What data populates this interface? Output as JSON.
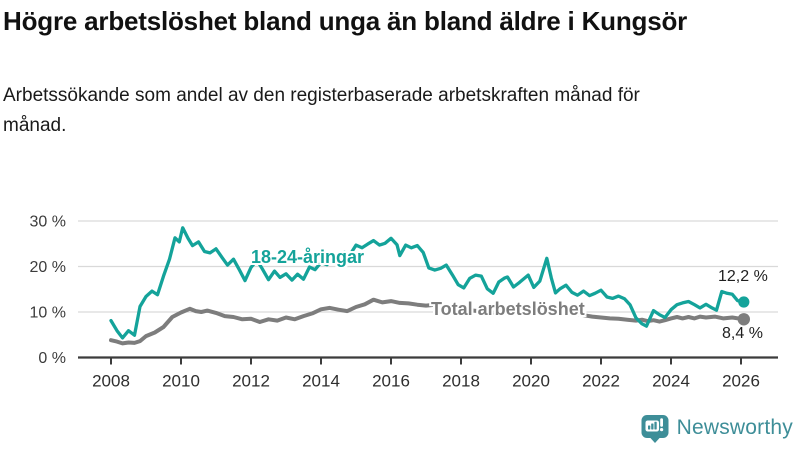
{
  "header": {
    "title": "Högre arbetslöshet bland unga än bland äldre i Kungsör",
    "subtitle": "Arbetssökande som andel av den registerbaserade arbetskraften månad för månad."
  },
  "chart_data": {
    "type": "line",
    "unit": "%",
    "grid": true,
    "ylim": [
      0,
      30
    ],
    "y_ticks": [
      0,
      10,
      20,
      30
    ],
    "y_tick_labels": [
      "0 %",
      "10 %",
      "20 %",
      "30 %"
    ],
    "x_ticks": [
      2008,
      2010,
      2012,
      2014,
      2016,
      2018,
      2020,
      2022,
      2024,
      2026
    ],
    "colors": {
      "young": "#14a39a",
      "total": "#7d7d7d",
      "grid": "#d9d9d9",
      "axis": "#3c3c3c"
    },
    "series": [
      {
        "name": "Total arbetslöshet",
        "color": "#7d7d7d",
        "end_label": "8,4 %",
        "end_value": 8.4,
        "points": [
          [
            2008.0,
            3.8
          ],
          [
            2008.17,
            3.5
          ],
          [
            2008.33,
            3.1
          ],
          [
            2008.5,
            3.3
          ],
          [
            2008.67,
            3.2
          ],
          [
            2008.83,
            3.6
          ],
          [
            2009.0,
            4.7
          ],
          [
            2009.25,
            5.5
          ],
          [
            2009.5,
            6.7
          ],
          [
            2009.75,
            8.9
          ],
          [
            2010.0,
            9.9
          ],
          [
            2010.25,
            10.7
          ],
          [
            2010.42,
            10.2
          ],
          [
            2010.58,
            10.0
          ],
          [
            2010.75,
            10.3
          ],
          [
            2011.0,
            9.8
          ],
          [
            2011.25,
            9.1
          ],
          [
            2011.5,
            8.9
          ],
          [
            2011.75,
            8.4
          ],
          [
            2012.0,
            8.5
          ],
          [
            2012.25,
            7.8
          ],
          [
            2012.5,
            8.4
          ],
          [
            2012.75,
            8.1
          ],
          [
            2013.0,
            8.8
          ],
          [
            2013.25,
            8.4
          ],
          [
            2013.5,
            9.1
          ],
          [
            2013.75,
            9.7
          ],
          [
            2014.0,
            10.6
          ],
          [
            2014.25,
            10.9
          ],
          [
            2014.5,
            10.5
          ],
          [
            2014.75,
            10.2
          ],
          [
            2015.0,
            11.1
          ],
          [
            2015.25,
            11.7
          ],
          [
            2015.5,
            12.7
          ],
          [
            2015.75,
            12.1
          ],
          [
            2016.0,
            12.4
          ],
          [
            2016.25,
            12.0
          ],
          [
            2016.5,
            11.9
          ],
          [
            2016.75,
            11.6
          ],
          [
            2017.0,
            11.4
          ],
          [
            2017.25,
            11.6
          ],
          [
            2017.5,
            11.3
          ],
          [
            2017.75,
            11.0
          ],
          [
            2018.0,
            10.7
          ],
          [
            2018.25,
            10.4
          ],
          [
            2018.5,
            10.2
          ],
          [
            2018.75,
            10.0
          ],
          [
            2019.0,
            9.8
          ],
          [
            2019.25,
            9.6
          ],
          [
            2019.5,
            9.7
          ],
          [
            2019.75,
            9.9
          ],
          [
            2020.0,
            10.0
          ],
          [
            2020.25,
            10.5
          ],
          [
            2020.5,
            10.7
          ],
          [
            2020.75,
            10.3
          ],
          [
            2021.0,
            10.0
          ],
          [
            2021.25,
            9.6
          ],
          [
            2021.5,
            9.3
          ],
          [
            2021.75,
            9.0
          ],
          [
            2022.0,
            8.8
          ],
          [
            2022.25,
            8.6
          ],
          [
            2022.5,
            8.5
          ],
          [
            2022.75,
            8.3
          ],
          [
            2023.0,
            8.1
          ],
          [
            2023.17,
            8.3
          ],
          [
            2023.33,
            8.0
          ],
          [
            2023.5,
            8.2
          ],
          [
            2023.67,
            7.9
          ],
          [
            2023.83,
            8.2
          ],
          [
            2024.0,
            8.6
          ],
          [
            2024.17,
            8.9
          ],
          [
            2024.33,
            8.6
          ],
          [
            2024.5,
            8.9
          ],
          [
            2024.67,
            8.6
          ],
          [
            2024.83,
            9.0
          ],
          [
            2025.0,
            8.8
          ],
          [
            2025.25,
            9.0
          ],
          [
            2025.5,
            8.6
          ],
          [
            2025.75,
            8.8
          ],
          [
            2026.08,
            8.4
          ]
        ]
      },
      {
        "name": "18-24-åringar",
        "color": "#14a39a",
        "end_label": "12,2 %",
        "end_value": 12.2,
        "points": [
          [
            2008.0,
            8.1
          ],
          [
            2008.17,
            5.9
          ],
          [
            2008.33,
            4.3
          ],
          [
            2008.5,
            5.9
          ],
          [
            2008.67,
            4.9
          ],
          [
            2008.83,
            11.2
          ],
          [
            2009.0,
            13.4
          ],
          [
            2009.17,
            14.6
          ],
          [
            2009.33,
            13.8
          ],
          [
            2009.5,
            17.9
          ],
          [
            2009.67,
            21.6
          ],
          [
            2009.83,
            26.3
          ],
          [
            2009.95,
            25.4
          ],
          [
            2010.05,
            28.5
          ],
          [
            2010.2,
            26.2
          ],
          [
            2010.33,
            24.6
          ],
          [
            2010.5,
            25.4
          ],
          [
            2010.67,
            23.3
          ],
          [
            2010.83,
            23.0
          ],
          [
            2011.0,
            23.9
          ],
          [
            2011.17,
            22.0
          ],
          [
            2011.33,
            20.3
          ],
          [
            2011.5,
            21.6
          ],
          [
            2011.67,
            19.2
          ],
          [
            2011.83,
            16.9
          ],
          [
            2012.0,
            19.8
          ],
          [
            2012.17,
            21.4
          ],
          [
            2012.33,
            19.4
          ],
          [
            2012.5,
            17.1
          ],
          [
            2012.67,
            19.0
          ],
          [
            2012.83,
            17.6
          ],
          [
            2013.0,
            18.4
          ],
          [
            2013.17,
            17.0
          ],
          [
            2013.33,
            18.3
          ],
          [
            2013.5,
            17.2
          ],
          [
            2013.67,
            19.9
          ],
          [
            2013.83,
            19.3
          ],
          [
            2014.0,
            20.9
          ],
          [
            2014.17,
            20.4
          ],
          [
            2014.33,
            22.2
          ],
          [
            2014.5,
            21.7
          ],
          [
            2014.67,
            23.1
          ],
          [
            2014.83,
            22.6
          ],
          [
            2015.0,
            24.7
          ],
          [
            2015.17,
            24.1
          ],
          [
            2015.33,
            24.9
          ],
          [
            2015.5,
            25.7
          ],
          [
            2015.67,
            24.7
          ],
          [
            2015.83,
            25.1
          ],
          [
            2016.0,
            26.2
          ],
          [
            2016.17,
            24.8
          ],
          [
            2016.25,
            22.4
          ],
          [
            2016.42,
            24.7
          ],
          [
            2016.58,
            24.1
          ],
          [
            2016.75,
            24.6
          ],
          [
            2016.92,
            23.1
          ],
          [
            2017.08,
            19.7
          ],
          [
            2017.25,
            19.2
          ],
          [
            2017.42,
            19.6
          ],
          [
            2017.58,
            20.3
          ],
          [
            2017.75,
            18.2
          ],
          [
            2017.92,
            16.0
          ],
          [
            2018.08,
            15.3
          ],
          [
            2018.25,
            17.4
          ],
          [
            2018.42,
            18.1
          ],
          [
            2018.58,
            17.9
          ],
          [
            2018.75,
            15.1
          ],
          [
            2018.92,
            14.1
          ],
          [
            2019.08,
            16.6
          ],
          [
            2019.25,
            17.5
          ],
          [
            2019.33,
            17.7
          ],
          [
            2019.5,
            15.5
          ],
          [
            2019.67,
            16.5
          ],
          [
            2019.92,
            18.1
          ],
          [
            2020.08,
            15.4
          ],
          [
            2020.25,
            16.8
          ],
          [
            2020.45,
            21.8
          ],
          [
            2020.58,
            17.5
          ],
          [
            2020.7,
            14.2
          ],
          [
            2020.83,
            15.1
          ],
          [
            2021.0,
            15.9
          ],
          [
            2021.17,
            14.3
          ],
          [
            2021.33,
            13.7
          ],
          [
            2021.5,
            14.6
          ],
          [
            2021.67,
            13.6
          ],
          [
            2021.83,
            14.1
          ],
          [
            2022.0,
            14.8
          ],
          [
            2022.17,
            13.3
          ],
          [
            2022.33,
            13.0
          ],
          [
            2022.5,
            13.5
          ],
          [
            2022.67,
            12.9
          ],
          [
            2022.83,
            11.6
          ],
          [
            2023.0,
            8.7
          ],
          [
            2023.17,
            7.4
          ],
          [
            2023.3,
            6.9
          ],
          [
            2023.5,
            10.3
          ],
          [
            2023.67,
            9.4
          ],
          [
            2023.83,
            8.8
          ],
          [
            2024.0,
            10.5
          ],
          [
            2024.17,
            11.6
          ],
          [
            2024.33,
            12.0
          ],
          [
            2024.5,
            12.3
          ],
          [
            2024.67,
            11.6
          ],
          [
            2024.83,
            10.9
          ],
          [
            2025.0,
            11.7
          ],
          [
            2025.17,
            10.9
          ],
          [
            2025.3,
            10.4
          ],
          [
            2025.45,
            14.5
          ],
          [
            2025.6,
            14.1
          ],
          [
            2025.75,
            13.9
          ],
          [
            2025.9,
            12.5
          ],
          [
            2026.08,
            12.2
          ]
        ]
      }
    ]
  },
  "footer": {
    "brand": "Newsworthy"
  }
}
